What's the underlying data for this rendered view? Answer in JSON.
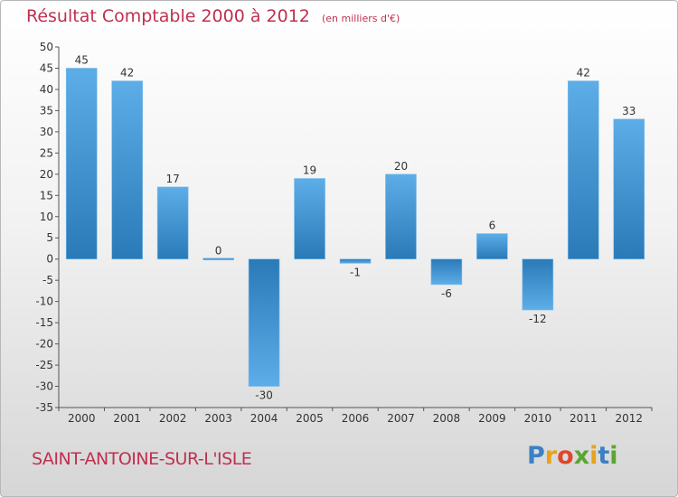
{
  "header": {
    "title": "Résultat Comptable 2000 à 2012",
    "subtitle": "(en milliers d'€)"
  },
  "footer": {
    "commune": "SAINT-ANTOINE-SUR-L'ISLE",
    "brand_letters": [
      "P",
      "r",
      "o",
      "x",
      "i",
      "t",
      "i"
    ],
    "brand_colors": [
      "#3b7fc4",
      "#e8a21a",
      "#e0462b",
      "#5aa632",
      "#e8a21a",
      "#3b7fc4",
      "#5aa632"
    ]
  },
  "chart_data": {
    "type": "bar",
    "title": "Résultat Comptable 2000 à 2012",
    "subtitle": "(en milliers d'€)",
    "xlabel": "",
    "ylabel": "",
    "categories": [
      "2000",
      "2001",
      "2002",
      "2003",
      "2004",
      "2005",
      "2006",
      "2007",
      "2008",
      "2009",
      "2010",
      "2011",
      "2012"
    ],
    "values": [
      45,
      42,
      17,
      0,
      -30,
      19,
      -1,
      20,
      -6,
      6,
      -12,
      42,
      33
    ],
    "ylim": [
      -35,
      50
    ],
    "yticks": [
      50,
      45,
      40,
      35,
      30,
      25,
      20,
      15,
      10,
      5,
      0,
      -5,
      -10,
      -15,
      -20,
      -25,
      -30,
      -35
    ],
    "grid": false,
    "legend": "none",
    "bar_color_light": "#5dade8",
    "bar_color_dark": "#2a7ab8",
    "axis_color": "#555555"
  }
}
